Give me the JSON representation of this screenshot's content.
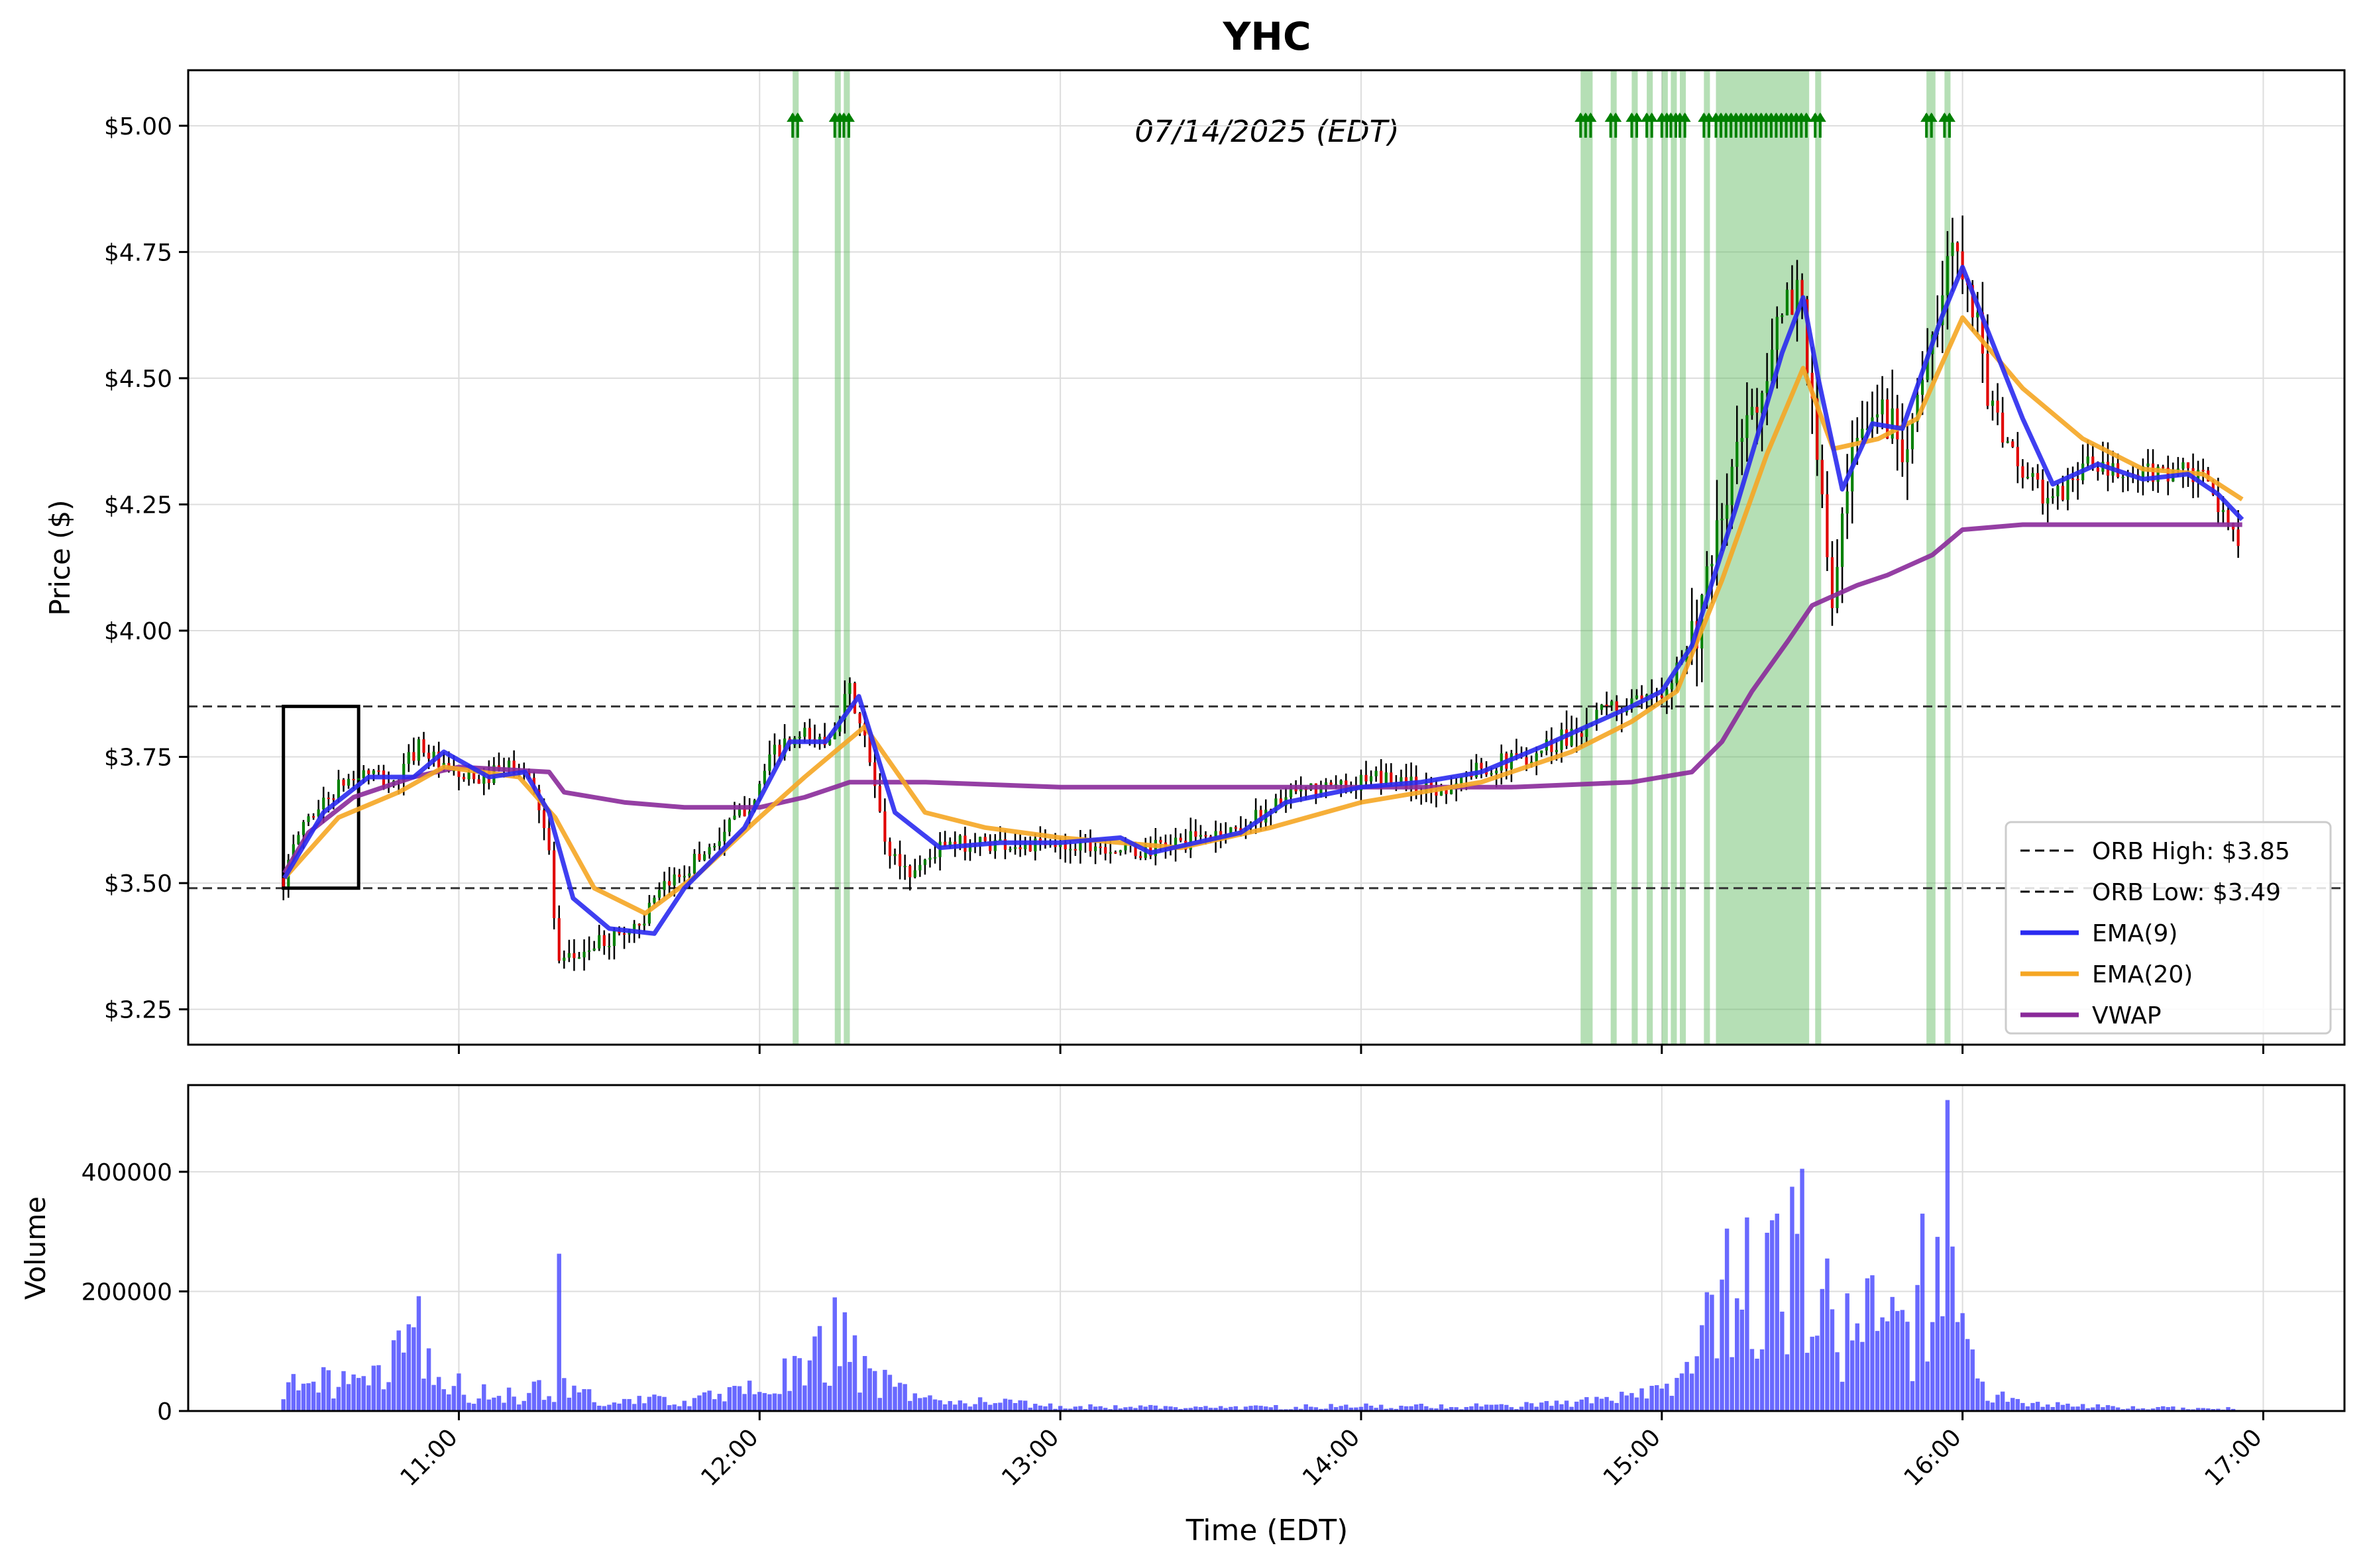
{
  "chart_data": [
    {
      "type": "candlestick",
      "title": "YHC",
      "annotation": "07/14/2025 (EDT)",
      "ylabel": "Price ($)",
      "ylim": [
        3.18,
        5.11
      ],
      "y_ticks": [
        3.25,
        3.5,
        3.75,
        4.0,
        4.25,
        4.5,
        4.75,
        5.0
      ],
      "y_tick_labels": [
        "$3.25",
        "$3.50",
        "$3.75",
        "$4.00",
        "$4.25",
        "$4.50",
        "$4.75",
        "$5.00"
      ],
      "x_range_hours": [
        10.1,
        17.27
      ],
      "grid": true,
      "legend_position": "lower-right",
      "legend": [
        {
          "label": "ORB High: $3.85",
          "style": "dashed",
          "color": "#000000"
        },
        {
          "label": "ORB Low: $3.49",
          "style": "dashed",
          "color": "#000000"
        },
        {
          "label": "EMA(9)",
          "style": "solid",
          "color": "#2a2af0"
        },
        {
          "label": "EMA(20)",
          "style": "solid",
          "color": "#f5a623"
        },
        {
          "label": "VWAP",
          "style": "solid",
          "color": "#8a2a9a"
        }
      ],
      "orb": {
        "high": 3.85,
        "low": 3.49,
        "box_start": "10:25",
        "box_end": "10:40"
      },
      "signal_ranges_hours": [
        [
          12.11,
          12.13
        ],
        [
          12.25,
          12.27
        ],
        [
          12.28,
          12.3
        ],
        [
          14.73,
          14.77
        ],
        [
          14.83,
          14.85
        ],
        [
          14.9,
          14.92
        ],
        [
          14.95,
          14.97
        ],
        [
          15.0,
          15.02
        ],
        [
          15.03,
          15.05
        ],
        [
          15.06,
          15.08
        ],
        [
          15.14,
          15.16
        ],
        [
          15.18,
          15.49
        ],
        [
          15.51,
          15.53
        ],
        [
          15.88,
          15.91
        ],
        [
          15.94,
          15.96
        ]
      ],
      "candles": {
        "start_time": "10:25",
        "interval_minutes": 1,
        "anchors": [
          [
            10.42,
            3.51
          ],
          [
            10.48,
            3.62
          ],
          [
            10.55,
            3.66
          ],
          [
            10.62,
            3.7
          ],
          [
            10.7,
            3.72
          ],
          [
            10.78,
            3.69
          ],
          [
            10.87,
            3.78
          ],
          [
            10.95,
            3.72
          ],
          [
            11.05,
            3.7
          ],
          [
            11.17,
            3.73
          ],
          [
            11.25,
            3.7
          ],
          [
            11.3,
            3.56
          ],
          [
            11.33,
            3.33
          ],
          [
            11.4,
            3.36
          ],
          [
            11.5,
            3.39
          ],
          [
            11.6,
            3.42
          ],
          [
            11.7,
            3.5
          ],
          [
            11.85,
            3.58
          ],
          [
            11.97,
            3.66
          ],
          [
            12.05,
            3.76
          ],
          [
            12.15,
            3.79
          ],
          [
            12.22,
            3.78
          ],
          [
            12.3,
            3.88
          ],
          [
            12.36,
            3.76
          ],
          [
            12.42,
            3.57
          ],
          [
            12.5,
            3.52
          ],
          [
            12.6,
            3.57
          ],
          [
            12.7,
            3.58
          ],
          [
            12.8,
            3.58
          ],
          [
            12.95,
            3.57
          ],
          [
            13.1,
            3.58
          ],
          [
            13.25,
            3.56
          ],
          [
            13.4,
            3.58
          ],
          [
            13.6,
            3.61
          ],
          [
            13.75,
            3.67
          ],
          [
            13.9,
            3.69
          ],
          [
            14.1,
            3.71
          ],
          [
            14.25,
            3.68
          ],
          [
            14.4,
            3.73
          ],
          [
            14.55,
            3.75
          ],
          [
            14.7,
            3.8
          ],
          [
            14.85,
            3.85
          ],
          [
            14.95,
            3.85
          ],
          [
            15.05,
            3.93
          ],
          [
            15.13,
            4.03
          ],
          [
            15.25,
            4.35
          ],
          [
            15.38,
            4.58
          ],
          [
            15.46,
            4.7
          ],
          [
            15.52,
            4.3
          ],
          [
            15.57,
            4.05
          ],
          [
            15.63,
            4.32
          ],
          [
            15.72,
            4.45
          ],
          [
            15.8,
            4.38
          ],
          [
            15.9,
            4.55
          ],
          [
            15.97,
            4.78
          ],
          [
            16.02,
            4.72
          ],
          [
            16.06,
            4.55
          ],
          [
            16.12,
            4.4
          ],
          [
            16.22,
            4.3
          ],
          [
            16.3,
            4.25
          ],
          [
            16.4,
            4.33
          ],
          [
            16.55,
            4.3
          ],
          [
            16.7,
            4.32
          ],
          [
            16.82,
            4.29
          ],
          [
            16.88,
            4.2
          ],
          [
            16.93,
            4.19
          ]
        ]
      },
      "ema9": [
        [
          10.42,
          3.51
        ],
        [
          10.55,
          3.64
        ],
        [
          10.7,
          3.71
        ],
        [
          10.85,
          3.71
        ],
        [
          10.95,
          3.76
        ],
        [
          11.1,
          3.71
        ],
        [
          11.22,
          3.72
        ],
        [
          11.3,
          3.64
        ],
        [
          11.38,
          3.47
        ],
        [
          11.5,
          3.41
        ],
        [
          11.65,
          3.4
        ],
        [
          11.75,
          3.49
        ],
        [
          11.95,
          3.61
        ],
        [
          12.1,
          3.78
        ],
        [
          12.22,
          3.78
        ],
        [
          12.33,
          3.87
        ],
        [
          12.45,
          3.64
        ],
        [
          12.6,
          3.57
        ],
        [
          12.8,
          3.58
        ],
        [
          13.0,
          3.58
        ],
        [
          13.2,
          3.59
        ],
        [
          13.3,
          3.56
        ],
        [
          13.6,
          3.6
        ],
        [
          13.75,
          3.66
        ],
        [
          14.0,
          3.69
        ],
        [
          14.2,
          3.7
        ],
        [
          14.4,
          3.72
        ],
        [
          14.6,
          3.77
        ],
        [
          14.75,
          3.81
        ],
        [
          14.9,
          3.85
        ],
        [
          15.0,
          3.88
        ],
        [
          15.1,
          3.97
        ],
        [
          15.25,
          4.25
        ],
        [
          15.4,
          4.55
        ],
        [
          15.47,
          4.66
        ],
        [
          15.52,
          4.5
        ],
        [
          15.6,
          4.28
        ],
        [
          15.7,
          4.41
        ],
        [
          15.8,
          4.4
        ],
        [
          15.93,
          4.62
        ],
        [
          16.0,
          4.72
        ],
        [
          16.08,
          4.6
        ],
        [
          16.2,
          4.42
        ],
        [
          16.3,
          4.29
        ],
        [
          16.45,
          4.33
        ],
        [
          16.6,
          4.3
        ],
        [
          16.75,
          4.31
        ],
        [
          16.85,
          4.27
        ],
        [
          16.93,
          4.22
        ]
      ],
      "ema20": [
        [
          10.42,
          3.51
        ],
        [
          10.6,
          3.63
        ],
        [
          10.8,
          3.68
        ],
        [
          10.95,
          3.73
        ],
        [
          11.2,
          3.71
        ],
        [
          11.32,
          3.63
        ],
        [
          11.45,
          3.49
        ],
        [
          11.62,
          3.44
        ],
        [
          11.8,
          3.52
        ],
        [
          12.0,
          3.63
        ],
        [
          12.15,
          3.71
        ],
        [
          12.35,
          3.81
        ],
        [
          12.55,
          3.64
        ],
        [
          12.75,
          3.61
        ],
        [
          13.0,
          3.59
        ],
        [
          13.4,
          3.57
        ],
        [
          13.7,
          3.61
        ],
        [
          14.0,
          3.66
        ],
        [
          14.4,
          3.7
        ],
        [
          14.7,
          3.76
        ],
        [
          14.9,
          3.82
        ],
        [
          15.05,
          3.88
        ],
        [
          15.2,
          4.1
        ],
        [
          15.35,
          4.35
        ],
        [
          15.47,
          4.52
        ],
        [
          15.57,
          4.36
        ],
        [
          15.72,
          4.38
        ],
        [
          15.85,
          4.42
        ],
        [
          16.0,
          4.62
        ],
        [
          16.2,
          4.48
        ],
        [
          16.4,
          4.38
        ],
        [
          16.6,
          4.32
        ],
        [
          16.8,
          4.31
        ],
        [
          16.93,
          4.26
        ]
      ],
      "vwap": [
        [
          10.42,
          3.52
        ],
        [
          10.5,
          3.6
        ],
        [
          10.65,
          3.67
        ],
        [
          10.85,
          3.71
        ],
        [
          11.0,
          3.73
        ],
        [
          11.3,
          3.72
        ],
        [
          11.35,
          3.68
        ],
        [
          11.55,
          3.66
        ],
        [
          11.75,
          3.65
        ],
        [
          12.0,
          3.65
        ],
        [
          12.15,
          3.67
        ],
        [
          12.3,
          3.7
        ],
        [
          12.55,
          3.7
        ],
        [
          13.0,
          3.69
        ],
        [
          13.5,
          3.69
        ],
        [
          14.0,
          3.69
        ],
        [
          14.5,
          3.69
        ],
        [
          14.9,
          3.7
        ],
        [
          15.1,
          3.72
        ],
        [
          15.2,
          3.78
        ],
        [
          15.3,
          3.88
        ],
        [
          15.42,
          3.98
        ],
        [
          15.5,
          4.05
        ],
        [
          15.65,
          4.09
        ],
        [
          15.75,
          4.11
        ],
        [
          15.9,
          4.15
        ],
        [
          16.0,
          4.2
        ],
        [
          16.2,
          4.21
        ],
        [
          16.93,
          4.21
        ]
      ]
    },
    {
      "type": "bar",
      "ylabel": "Volume",
      "xlabel": "Time (EDT)",
      "ylim": [
        0,
        545000
      ],
      "y_ticks": [
        0,
        200000,
        400000
      ],
      "y_tick_labels": [
        "0",
        "200000",
        "400000"
      ],
      "x_ticks_hours": [
        11,
        12,
        13,
        14,
        15,
        16,
        17
      ],
      "x_tick_labels": [
        "11:00",
        "12:00",
        "13:00",
        "14:00",
        "15:00",
        "16:00",
        "17:00"
      ],
      "bar_color": "#4444ff",
      "volume_profile": [
        [
          10.42,
          40000
        ],
        [
          10.55,
          50000
        ],
        [
          10.7,
          40000
        ],
        [
          10.85,
          110000
        ],
        [
          10.92,
          60000
        ],
        [
          11.05,
          30000
        ],
        [
          11.2,
          25000
        ],
        [
          11.33,
          40000
        ],
        [
          11.5,
          15000
        ],
        [
          11.8,
          20000
        ],
        [
          11.95,
          30000
        ],
        [
          12.1,
          60000
        ],
        [
          12.27,
          110000
        ],
        [
          12.4,
          50000
        ],
        [
          12.55,
          20000
        ],
        [
          13.0,
          8000
        ],
        [
          13.5,
          6000
        ],
        [
          14.0,
          8000
        ],
        [
          14.5,
          8000
        ],
        [
          14.75,
          15000
        ],
        [
          14.95,
          25000
        ],
        [
          15.05,
          50000
        ],
        [
          15.12,
          60000
        ],
        [
          15.18,
          200000
        ],
        [
          15.3,
          220000
        ],
        [
          15.45,
          220000
        ],
        [
          15.55,
          120000
        ],
        [
          15.7,
          150000
        ],
        [
          15.82,
          110000
        ],
        [
          15.92,
          220000
        ],
        [
          16.0,
          120000
        ],
        [
          16.05,
          40000
        ],
        [
          16.2,
          12000
        ],
        [
          16.5,
          6000
        ],
        [
          16.93,
          4000
        ]
      ],
      "volume_spikes": [
        [
          10.87,
          192000
        ],
        [
          11.33,
          263000
        ],
        [
          12.25,
          190000
        ],
        [
          12.28,
          165000
        ],
        [
          15.47,
          405000
        ],
        [
          15.43,
          375000
        ],
        [
          15.38,
          330000
        ],
        [
          15.95,
          520000
        ],
        [
          15.87,
          330000
        ],
        [
          15.97,
          275000
        ],
        [
          15.21,
          305000
        ],
        [
          15.55,
          255000
        ]
      ]
    }
  ]
}
